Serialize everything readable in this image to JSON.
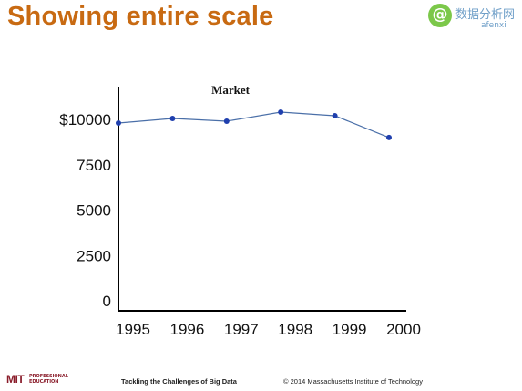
{
  "slide": {
    "title": "Showing entire scale"
  },
  "watermark": {
    "logo_glyph": "@",
    "name": "数据分析网",
    "sub": "afenxi"
  },
  "chart_data": {
    "type": "line",
    "title": "Market",
    "xlabel": "",
    "ylabel": "",
    "x": [
      "1995",
      "1996",
      "1997",
      "1998",
      "1999",
      "2000"
    ],
    "values": [
      9800,
      10050,
      9900,
      10400,
      10200,
      9000
    ],
    "ylim": [
      0,
      10000
    ],
    "y_ticks": [
      {
        "value": 10000,
        "label": "$10000"
      },
      {
        "value": 7500,
        "label": "7500"
      },
      {
        "value": 5000,
        "label": "5000"
      },
      {
        "value": 2500,
        "label": "2500"
      },
      {
        "value": 0,
        "label": "0"
      }
    ],
    "grid": false,
    "line_color": "#4a6fa8",
    "marker_color": "#1f3fae"
  },
  "footer": {
    "logo_text": "MIT",
    "logo_sub_line1": "PROFESSIONAL",
    "logo_sub_line2": "EDUCATION",
    "course": "Tackling the Challenges of Big Data",
    "copyright": "© 2014 Massachusetts Institute of Technology"
  }
}
